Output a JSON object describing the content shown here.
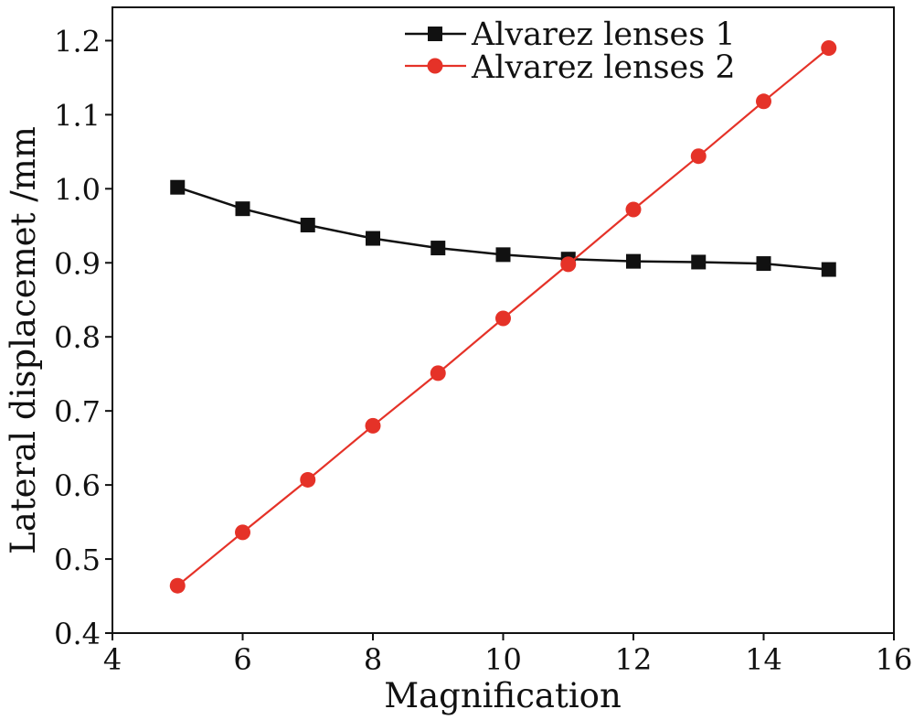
{
  "chart_data": {
    "type": "line",
    "xlabel": "Magnification",
    "ylabel": "Lateral displacemet /mm",
    "xlim": [
      4,
      16
    ],
    "ylim": [
      0.4,
      1.245
    ],
    "xtick_labels": [
      "4",
      "6",
      "8",
      "10",
      "12",
      "14",
      "16"
    ],
    "ytick_labels": [
      "0.4",
      "0.5",
      "0.6",
      "0.7",
      "0.8",
      "0.9",
      "1.0",
      "1.1",
      "1.2"
    ],
    "grid": false,
    "legend": {
      "position": "top-right"
    },
    "x": [
      5,
      6,
      7,
      8,
      9,
      10,
      11,
      12,
      13,
      14,
      15
    ],
    "series": [
      {
        "name": "Alvarez lenses 1",
        "color": "#111111",
        "marker": "square",
        "values": [
          1.002,
          0.973,
          0.951,
          0.933,
          0.92,
          0.911,
          0.905,
          0.902,
          0.901,
          0.899,
          0.891
        ]
      },
      {
        "name": "Alvarez lenses 2",
        "color": "#e53228",
        "marker": "circle",
        "values": [
          0.464,
          0.536,
          0.607,
          0.68,
          0.751,
          0.825,
          0.898,
          0.972,
          1.044,
          1.118,
          1.19
        ]
      }
    ]
  }
}
